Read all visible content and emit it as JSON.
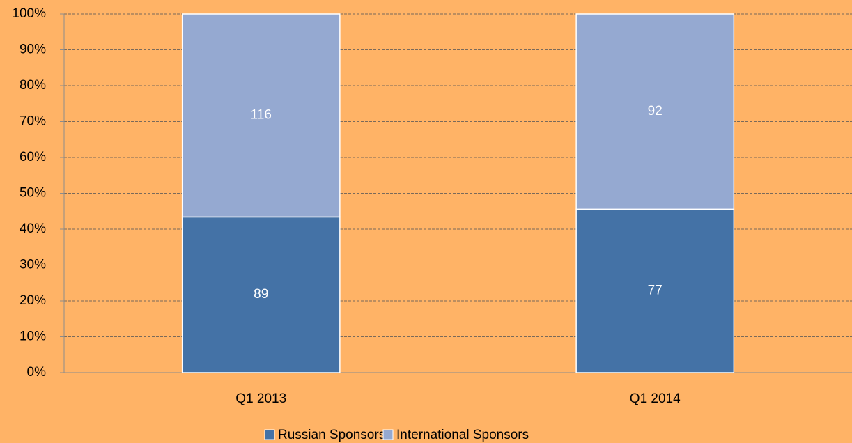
{
  "chart_data": {
    "type": "bar",
    "stacking": "percent",
    "categories": [
      "Q1 2013",
      "Q1 2014"
    ],
    "series": [
      {
        "name": "Russian Sponsors",
        "color": "#4472A6",
        "values": [
          89,
          77
        ]
      },
      {
        "name": "International Sponsors",
        "color": "#95A9D1",
        "values": [
          116,
          92
        ]
      }
    ],
    "ylim": [
      0,
      100
    ],
    "yticks": [
      {
        "value": 0,
        "label": "0%"
      },
      {
        "value": 10,
        "label": "10%"
      },
      {
        "value": 20,
        "label": "20%"
      },
      {
        "value": 30,
        "label": "30%"
      },
      {
        "value": 40,
        "label": "40%"
      },
      {
        "value": 50,
        "label": "50%"
      },
      {
        "value": 60,
        "label": "60%"
      },
      {
        "value": 70,
        "label": "70%"
      },
      {
        "value": 80,
        "label": "80%"
      },
      {
        "value": 90,
        "label": "90%"
      },
      {
        "value": 100,
        "label": "100%"
      }
    ],
    "grid": true,
    "legend": "bottom"
  }
}
